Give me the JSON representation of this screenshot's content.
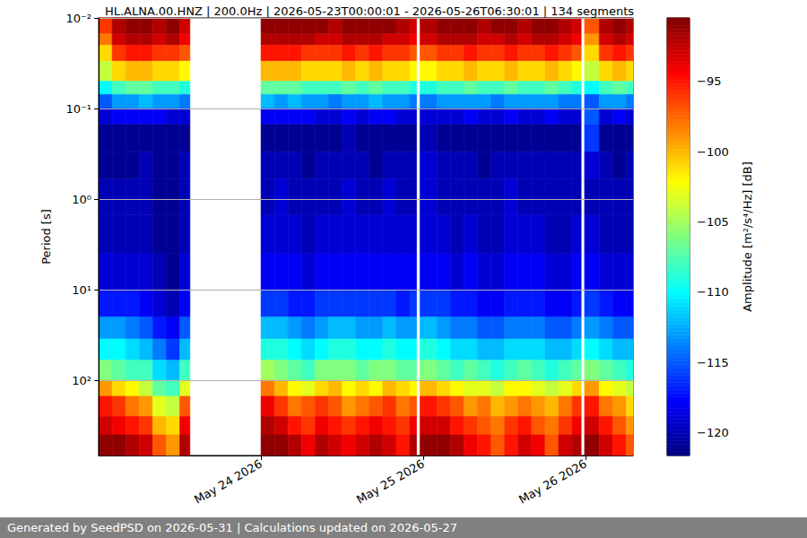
{
  "chart_data": {
    "type": "heatmap",
    "title": "HL.ALNA.00.HNZ | 200.0Hz | 2026-05-23T00:00:01 - 2026-05-26T06:30:01 | 134 segments",
    "y_label": "Period [s]",
    "footer": "Generated by SeedPSD on 2026-05-31 | Calculations updated on 2026-05-27",
    "log": "y",
    "grid": "y",
    "color": "jet",
    "xlim": [
      "2026-05-23T00:00:00",
      "2026-05-26T07:00:00"
    ],
    "xticks": [
      {
        "value": "2026-05-24T00:00:00",
        "label": "May 24 2026"
      },
      {
        "value": "2026-05-25T00:00:00",
        "label": "May 25 2026"
      },
      {
        "value": "2026-05-26T00:00:00",
        "label": "May 26 2026"
      }
    ],
    "ylim": [
      0.01,
      676
    ],
    "yticks": [
      {
        "value": 0.01,
        "label": "10⁻²"
      },
      {
        "value": 0.1,
        "label": "10⁻¹"
      },
      {
        "value": 1,
        "label": "10⁰"
      },
      {
        "value": 10,
        "label": "10¹"
      },
      {
        "value": 100,
        "label": "10²"
      }
    ],
    "x_edges": [
      "2026-05-23T00:00:00",
      "2026-05-23T02:00:00",
      "2026-05-23T04:00:00",
      "2026-05-23T06:00:00",
      "2026-05-23T08:00:00",
      "2026-05-23T10:00:00",
      "2026-05-23T12:00:00",
      "2026-05-23T13:30:00",
      "2026-05-24T00:00:00",
      "2026-05-24T02:00:00",
      "2026-05-24T04:00:00",
      "2026-05-24T06:00:00",
      "2026-05-24T08:00:00",
      "2026-05-24T10:00:00",
      "2026-05-24T12:00:00",
      "2026-05-24T14:00:00",
      "2026-05-24T16:00:00",
      "2026-05-24T18:00:00",
      "2026-05-24T20:00:00",
      "2026-05-24T22:00:00",
      "2026-05-24T23:00:00",
      "2026-05-24T23:30:00",
      "2026-05-25T02:00:00",
      "2026-05-25T04:00:00",
      "2026-05-25T06:00:00",
      "2026-05-25T08:00:00",
      "2026-05-25T10:00:00",
      "2026-05-25T12:00:00",
      "2026-05-25T14:00:00",
      "2026-05-25T16:00:00",
      "2026-05-25T18:00:00",
      "2026-05-25T20:00:00",
      "2026-05-25T22:00:00",
      "2026-05-25T23:20:00",
      "2026-05-25T23:50:00",
      "2026-05-26T02:00:00",
      "2026-05-26T04:00:00",
      "2026-05-26T06:00:00",
      "2026-05-26T07:00:00"
    ],
    "y_edges": [
      0.01,
      0.015,
      0.02,
      0.03,
      0.05,
      0.07,
      0.1,
      0.15,
      0.3,
      0.6,
      1.5,
      4,
      10,
      20,
      35,
      60,
      100,
      150,
      250,
      400,
      676
    ],
    "cells": [
      [
        -96,
        -92,
        -91,
        -91,
        -92,
        -91,
        -93,
        null,
        -91,
        -91,
        -91,
        -91,
        -91,
        -92,
        -91,
        -91,
        -91,
        -91,
        -92,
        -93,
        null,
        -92,
        -91,
        -91,
        -91,
        -92,
        -91,
        -91,
        -92,
        -91,
        -91,
        -92,
        -93,
        null,
        -97,
        -92,
        -91,
        -92
      ],
      [
        -98,
        -93,
        -92,
        -92,
        -93,
        -92,
        -94,
        null,
        -92,
        -92,
        -92,
        -92,
        -93,
        -93,
        -92,
        -92,
        -92,
        -93,
        -93,
        -94,
        null,
        -93,
        -92,
        -92,
        -92,
        -93,
        -93,
        -92,
        -93,
        -92,
        -92,
        -93,
        -94,
        null,
        -99,
        -93,
        -92,
        -93
      ],
      [
        -101,
        -96,
        -95,
        -95,
        -96,
        -96,
        -97,
        null,
        -95,
        -95,
        -95,
        -96,
        -96,
        -96,
        -95,
        -96,
        -95,
        -96,
        -96,
        -97,
        null,
        -97,
        -96,
        -96,
        -95,
        -96,
        -96,
        -95,
        -96,
        -96,
        -95,
        -96,
        -97,
        null,
        -101,
        -96,
        -95,
        -96
      ],
      [
        -104,
        -101,
        -100,
        -100,
        -101,
        -101,
        -102,
        null,
        -100,
        -100,
        -100,
        -101,
        -101,
        -101,
        -100,
        -101,
        -100,
        -101,
        -101,
        -102,
        null,
        -102,
        -101,
        -101,
        -100,
        -101,
        -101,
        -100,
        -101,
        -101,
        -100,
        -101,
        -102,
        null,
        -104,
        -101,
        -100,
        -101
      ],
      [
        -110,
        -108,
        -107,
        -107,
        -108,
        -108,
        -109,
        null,
        -107,
        -107,
        -107,
        -108,
        -108,
        -108,
        -107,
        -108,
        -107,
        -108,
        -108,
        -109,
        null,
        -109,
        -108,
        -108,
        -107,
        -108,
        -108,
        -107,
        -108,
        -108,
        -107,
        -108,
        -109,
        null,
        -110,
        -108,
        -107,
        -108
      ],
      [
        -115,
        -113,
        -113,
        -112,
        -113,
        -113,
        -114,
        null,
        -112,
        -113,
        -112,
        -113,
        -113,
        -114,
        -113,
        -113,
        -112,
        -113,
        -113,
        -114,
        null,
        -114,
        -113,
        -113,
        -113,
        -113,
        -114,
        -113,
        -113,
        -113,
        -113,
        -114,
        -114,
        null,
        -115,
        -113,
        -113,
        -114
      ],
      [
        -119,
        -118,
        -118,
        -118,
        -118,
        -119,
        -119,
        null,
        -118,
        -118,
        -118,
        -118,
        -119,
        -119,
        -118,
        -119,
        -118,
        -118,
        -119,
        -119,
        null,
        -119,
        -119,
        -119,
        -118,
        -119,
        -119,
        -118,
        -119,
        -119,
        -118,
        -119,
        -119,
        null,
        -115,
        -119,
        -118,
        -119
      ],
      [
        -121,
        -121,
        -121,
        -121,
        -121,
        -121,
        -121,
        null,
        -121,
        -121,
        -121,
        -121,
        -121,
        -121,
        -120,
        -121,
        -121,
        -121,
        -121,
        -121,
        null,
        -120,
        -121,
        -121,
        -121,
        -121,
        -121,
        -121,
        -121,
        -121,
        -121,
        -121,
        -121,
        null,
        -116,
        -121,
        -121,
        -121
      ],
      [
        -121,
        -121,
        -121,
        -120,
        -121,
        -121,
        -120,
        null,
        -120,
        -120,
        -120,
        -121,
        -120,
        -120,
        -120,
        -120,
        -121,
        -120,
        -120,
        -120,
        null,
        -119,
        -120,
        -120,
        -120,
        -121,
        -120,
        -120,
        -120,
        -120,
        -120,
        -120,
        -120,
        null,
        -119,
        -120,
        -121,
        -120
      ],
      [
        -120,
        -120,
        -120,
        -120,
        -121,
        -121,
        -120,
        null,
        -120,
        -119,
        -120,
        -120,
        -120,
        -120,
        -119,
        -120,
        -120,
        -119,
        -120,
        -120,
        null,
        -119,
        -120,
        -120,
        -120,
        -120,
        -120,
        -119,
        -120,
        -120,
        -120,
        -120,
        -120,
        null,
        -120,
        -120,
        -120,
        -120
      ],
      [
        -120,
        -120,
        -120,
        -120,
        -121,
        -121,
        -120,
        null,
        -119,
        -119,
        -119,
        -120,
        -119,
        -119,
        -119,
        -119,
        -119,
        -119,
        -119,
        -119,
        null,
        -119,
        -119,
        -120,
        -119,
        -120,
        -120,
        -119,
        -119,
        -119,
        -120,
        -120,
        -119,
        null,
        -119,
        -120,
        -120,
        -120
      ],
      [
        -119,
        -119,
        -119,
        -119,
        -120,
        -121,
        -119,
        null,
        -118,
        -118,
        -118,
        -119,
        -118,
        -118,
        -118,
        -118,
        -118,
        -118,
        -118,
        -118,
        null,
        -118,
        -118,
        -119,
        -118,
        -119,
        -119,
        -118,
        -118,
        -118,
        -119,
        -119,
        -118,
        null,
        -118,
        -119,
        -119,
        -119
      ],
      [
        -117,
        -117,
        -117,
        -118,
        -119,
        -120,
        -118,
        null,
        -116,
        -116,
        -117,
        -117,
        -116,
        -116,
        -116,
        -116,
        -116,
        -116,
        -117,
        -116,
        null,
        -116,
        -116,
        -117,
        -117,
        -118,
        -118,
        -117,
        -117,
        -117,
        -118,
        -118,
        -117,
        null,
        -116,
        -117,
        -118,
        -118
      ],
      [
        -113,
        -113,
        -114,
        -115,
        -117,
        -118,
        -115,
        null,
        -112,
        -112,
        -113,
        -114,
        -113,
        -112,
        -112,
        -113,
        -113,
        -112,
        -113,
        -113,
        null,
        -112,
        -113,
        -114,
        -114,
        -115,
        -115,
        -114,
        -114,
        -114,
        -115,
        -115,
        -114,
        null,
        -113,
        -114,
        -115,
        -115
      ],
      [
        -110,
        -110,
        -111,
        -112,
        -114,
        -116,
        -112,
        null,
        -109,
        -109,
        -110,
        -111,
        -110,
        -109,
        -109,
        -110,
        -110,
        -109,
        -110,
        -110,
        null,
        -109,
        -110,
        -111,
        -111,
        -112,
        -112,
        -111,
        -111,
        -111,
        -112,
        -112,
        -111,
        null,
        -110,
        -111,
        -112,
        -112
      ],
      [
        -106,
        -107,
        -108,
        -108,
        -111,
        -112,
        -108,
        null,
        -105,
        -106,
        -107,
        -108,
        -106,
        -106,
        -106,
        -107,
        -106,
        -106,
        -107,
        -107,
        null,
        -106,
        -107,
        -108,
        -107,
        -108,
        -109,
        -108,
        -107,
        -108,
        -109,
        -108,
        -107,
        null,
        -106,
        -107,
        -108,
        -109
      ],
      [
        -99,
        -101,
        -102,
        -104,
        -107,
        -108,
        -103,
        null,
        -98,
        -100,
        -102,
        -103,
        -101,
        -100,
        -102,
        -101,
        -102,
        -100,
        -101,
        -102,
        null,
        -100,
        -101,
        -102,
        -103,
        -103,
        -104,
        -102,
        -102,
        -103,
        -104,
        -103,
        -101,
        null,
        -99,
        -102,
        -103,
        -104
      ],
      [
        -95,
        -96,
        -98,
        -99,
        -103,
        -104,
        -97,
        null,
        -94,
        -96,
        -98,
        -97,
        -96,
        -97,
        -99,
        -98,
        -97,
        -96,
        -98,
        -97,
        null,
        -95,
        -96,
        -97,
        -99,
        -98,
        -100,
        -99,
        -98,
        -99,
        -100,
        -98,
        -96,
        null,
        -95,
        -98,
        -99,
        -101
      ],
      [
        -93,
        -94,
        -95,
        -96,
        -100,
        -101,
        -94,
        null,
        -92,
        -93,
        -95,
        -96,
        -94,
        -95,
        -96,
        -95,
        -94,
        -95,
        -96,
        -94,
        null,
        -93,
        -93,
        -95,
        -96,
        -97,
        -98,
        -96,
        -95,
        -97,
        -98,
        -96,
        -94,
        null,
        -93,
        -95,
        -97,
        -99
      ],
      [
        -91,
        -91,
        -92,
        -93,
        -97,
        -99,
        -92,
        null,
        -91,
        -91,
        -92,
        -94,
        -92,
        -93,
        -94,
        -93,
        -92,
        -93,
        -95,
        -92,
        null,
        -91,
        -91,
        -92,
        -94,
        -95,
        -97,
        -95,
        -93,
        -94,
        -97,
        -93,
        -92,
        null,
        -91,
        -93,
        -95,
        -97
      ]
    ],
    "colorbar": {
      "label": "Amplitude [m²/s⁴/Hz] [dB]",
      "range": [
        -121.6,
        -90.5
      ],
      "ticks": [
        {
          "value": -95,
          "label": "−95"
        },
        {
          "value": -100,
          "label": "−100"
        },
        {
          "value": -105,
          "label": "−105"
        },
        {
          "value": -110,
          "label": "−110"
        },
        {
          "value": -115,
          "label": "−115"
        },
        {
          "value": -120,
          "label": "−120"
        }
      ]
    }
  }
}
